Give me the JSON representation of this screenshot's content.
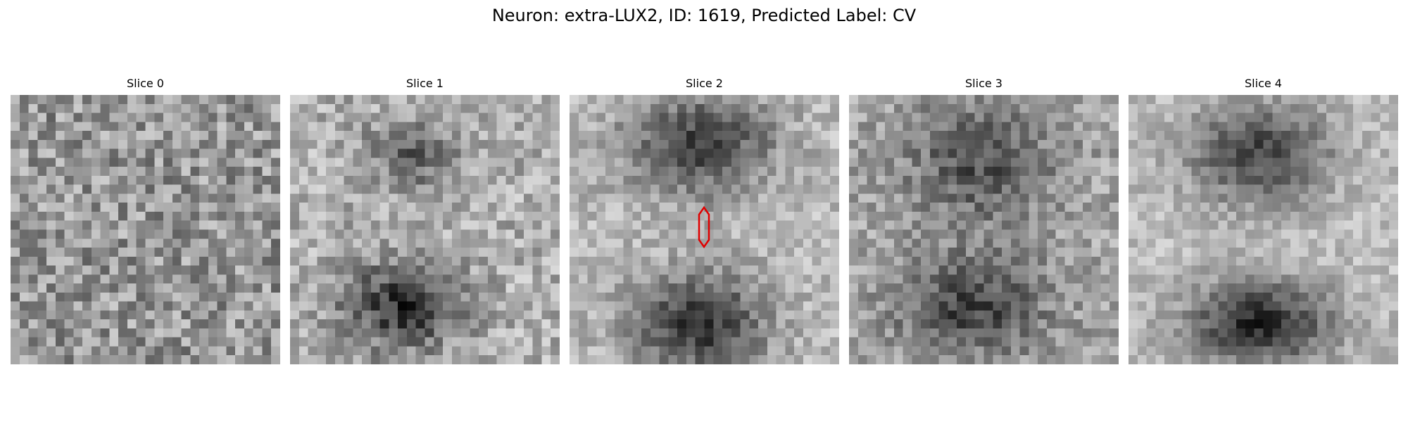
{
  "figure": {
    "title": "Neuron: extra-LUX2, ID: 1619, Predicted Label: CV"
  },
  "slices": [
    {
      "title": "Slice 0",
      "pattern": "noise"
    },
    {
      "title": "Slice 1",
      "pattern": "two-blobs-faint-top"
    },
    {
      "title": "Slice 2",
      "pattern": "two-blobs-cleft",
      "marker": "red-hexagon-outline"
    },
    {
      "title": "Slice 3",
      "pattern": "two-blobs-mid"
    },
    {
      "title": "Slice 4",
      "pattern": "two-blobs-strong"
    }
  ],
  "colors": {
    "marker": "#e00000",
    "background": "#ffffff"
  }
}
